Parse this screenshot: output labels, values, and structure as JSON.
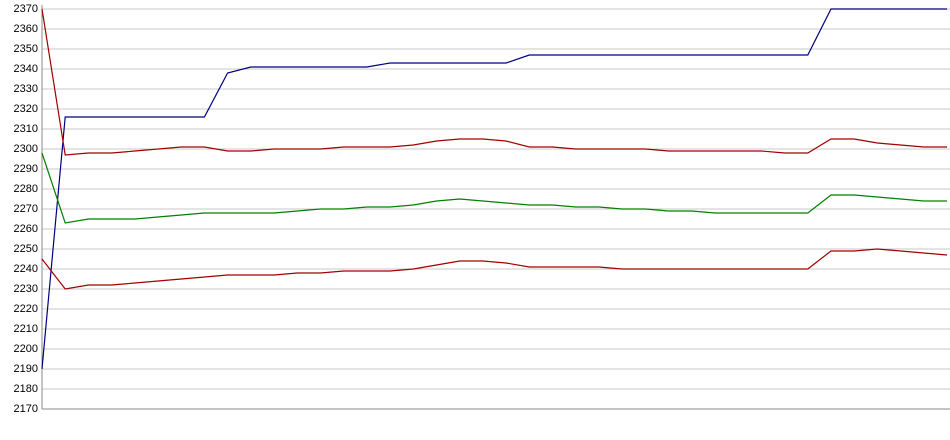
{
  "chart_data": {
    "type": "line",
    "categories": [
      null,
      null,
      null,
      null,
      null,
      null,
      null,
      null,
      null,
      null,
      null,
      null,
      null,
      null,
      null,
      null,
      null,
      null,
      null,
      null,
      null,
      null,
      null,
      null,
      null,
      null,
      null,
      null,
      null,
      null,
      null,
      null,
      null,
      null,
      null,
      null,
      null,
      null,
      null,
      null
    ],
    "series": [
      {
        "color": "#000080",
        "values": [
          2190,
          2316,
          2316,
          2316,
          2316,
          2316,
          2316,
          2316,
          2338,
          2341,
          2341,
          2341,
          2341,
          2341,
          2341,
          2343,
          2343,
          2343,
          2343,
          2343,
          2343,
          2347,
          2347,
          2347,
          2347,
          2347,
          2347,
          2347,
          2347,
          2347,
          2347,
          2347,
          2347,
          2347,
          2370,
          2370,
          2370,
          2370,
          2370,
          2370
        ]
      },
      {
        "color": "#a00000",
        "values": [
          2370,
          2297,
          2298,
          2298,
          2299,
          2300,
          2301,
          2301,
          2299,
          2299,
          2300,
          2300,
          2300,
          2301,
          2301,
          2301,
          2302,
          2304,
          2305,
          2305,
          2304,
          2301,
          2301,
          2300,
          2300,
          2300,
          2300,
          2299,
          2299,
          2299,
          2299,
          2299,
          2298,
          2298,
          2305,
          2305,
          2303,
          2302,
          2301,
          2301
        ]
      },
      {
        "color": "#008000",
        "values": [
          2298,
          2263,
          2265,
          2265,
          2265,
          2266,
          2267,
          2268,
          2268,
          2268,
          2268,
          2269,
          2270,
          2270,
          2271,
          2271,
          2272,
          2274,
          2275,
          2274,
          2273,
          2272,
          2272,
          2271,
          2271,
          2270,
          2270,
          2269,
          2269,
          2268,
          2268,
          2268,
          2268,
          2268,
          2277,
          2277,
          2276,
          2275,
          2274,
          2274
        ]
      },
      {
        "color": "#a00000",
        "values": [
          2245,
          2230,
          2232,
          2232,
          2233,
          2234,
          2235,
          2236,
          2237,
          2237,
          2237,
          2238,
          2238,
          2239,
          2239,
          2239,
          2240,
          2242,
          2244,
          2244,
          2243,
          2241,
          2241,
          2241,
          2241,
          2240,
          2240,
          2240,
          2240,
          2240,
          2240,
          2240,
          2240,
          2240,
          2249,
          2249,
          2250,
          2249,
          2248,
          2247
        ]
      }
    ],
    "ylim": [
      2170,
      2370
    ],
    "yticks": [
      2170,
      2180,
      2190,
      2200,
      2210,
      2220,
      2230,
      2240,
      2250,
      2260,
      2270,
      2280,
      2290,
      2300,
      2310,
      2320,
      2330,
      2340,
      2350,
      2360,
      2370
    ],
    "grid": true
  }
}
